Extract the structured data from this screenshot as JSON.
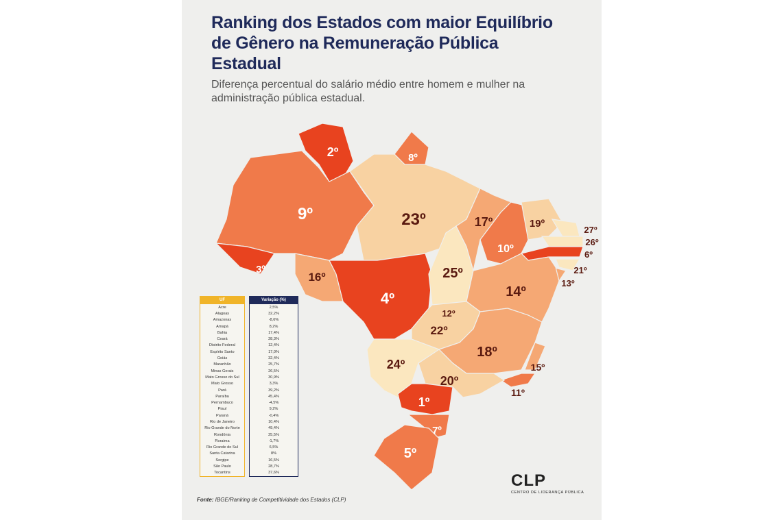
{
  "title": "Ranking dos Estados com maior Equilíbrio de Gênero na Remuneração Pública Estadual",
  "subtitle": "Diferença percentual do salário médio entre homem e mulher na administração pública estadual.",
  "colors": {
    "title": "#1f2a5a",
    "rank_top": "#e8431f",
    "rank_high": "#f07a4a",
    "rank_mid": "#f5a874",
    "rank_low": "#f8d2a2",
    "rank_lowest": "#fbe7bf"
  },
  "map_ranks": [
    {
      "uf": "RR",
      "rank": "2º"
    },
    {
      "uf": "AP",
      "rank": "8º"
    },
    {
      "uf": "AM",
      "rank": "9º"
    },
    {
      "uf": "AC",
      "rank": "3º"
    },
    {
      "uf": "RO",
      "rank": "16º"
    },
    {
      "uf": "PA",
      "rank": "23º"
    },
    {
      "uf": "MT",
      "rank": "4º"
    },
    {
      "uf": "TO",
      "rank": "25º"
    },
    {
      "uf": "MA",
      "rank": "17º"
    },
    {
      "uf": "PI",
      "rank": "10º"
    },
    {
      "uf": "CE",
      "rank": "19º"
    },
    {
      "uf": "RN",
      "rank": "27º"
    },
    {
      "uf": "PB",
      "rank": "26º"
    },
    {
      "uf": "PE",
      "rank": "6º"
    },
    {
      "uf": "AL",
      "rank": "21º"
    },
    {
      "uf": "SE",
      "rank": "13º"
    },
    {
      "uf": "BA",
      "rank": "14º"
    },
    {
      "uf": "DF",
      "rank": "12º"
    },
    {
      "uf": "GO",
      "rank": "22º"
    },
    {
      "uf": "MG",
      "rank": "18º"
    },
    {
      "uf": "ES",
      "rank": "15º"
    },
    {
      "uf": "RJ",
      "rank": "11º"
    },
    {
      "uf": "SP",
      "rank": "20º"
    },
    {
      "uf": "MS",
      "rank": "24º"
    },
    {
      "uf": "PR",
      "rank": "1º"
    },
    {
      "uf": "SC",
      "rank": "7º"
    },
    {
      "uf": "RS",
      "rank": "5º"
    }
  ],
  "table": {
    "headers": [
      "UF",
      "Variação (%)"
    ],
    "rows": [
      [
        "Acre",
        "2,5%"
      ],
      [
        "Alagoas",
        "32,2%"
      ],
      [
        "Amazonas",
        "-8,6%"
      ],
      [
        "Amapá",
        "8,2%"
      ],
      [
        "Bahia",
        "17,4%"
      ],
      [
        "Ceará",
        "28,3%"
      ],
      [
        "Distrito Federal",
        "12,4%"
      ],
      [
        "Espírito Santo",
        "17,0%"
      ],
      [
        "Goiás",
        "32,4%"
      ],
      [
        "Maranhão",
        "25,7%"
      ],
      [
        "Minas Gerais",
        "26,5%"
      ],
      [
        "Mato Grosso do Sul",
        "30,9%"
      ],
      [
        "Mato Grosso",
        "3,3%"
      ],
      [
        "Pará",
        "39,2%"
      ],
      [
        "Paraíba",
        "45,4%"
      ],
      [
        "Pernambuco",
        "-4,5%"
      ],
      [
        "Piauí",
        "9,2%"
      ],
      [
        "Paraná",
        "-0,4%"
      ],
      [
        "Rio de Janeiro",
        "10,4%"
      ],
      [
        "Rio Grande do Norte",
        "49,4%"
      ],
      [
        "Rondônia",
        "25,5%"
      ],
      [
        "Roraima",
        "-1,7%"
      ],
      [
        "Rio Grande do Sul",
        "6,5%"
      ],
      [
        "Santa Catarina",
        "8%"
      ],
      [
        "Sergipe",
        "16,5%"
      ],
      [
        "São Paulo",
        "28,7%"
      ],
      [
        "Tocantins",
        "37,6%"
      ]
    ]
  },
  "source": {
    "label": "Fonte:",
    "text": "IBGE/Ranking de Competitividade dos Estados (CLP)"
  },
  "logo": {
    "name": "CLP",
    "tagline": "CENTRO DE LIDERANÇA PÚBLICA"
  }
}
